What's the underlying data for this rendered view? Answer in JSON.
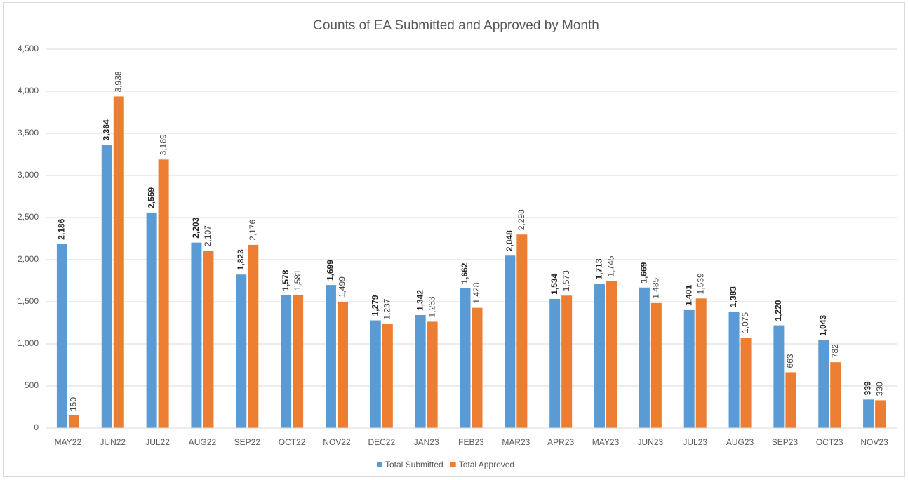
{
  "chart_data": {
    "type": "bar",
    "title": "Counts of EA Submitted and Approved by Month",
    "categories": [
      "MAY22",
      "JUN22",
      "JUL22",
      "AUG22",
      "SEP22",
      "OCT22",
      "NOV22",
      "DEC22",
      "JAN23",
      "FEB23",
      "MAR23",
      "APR23",
      "MAY23",
      "JUN23",
      "JUL23",
      "AUG23",
      "SEP23",
      "OCT23",
      "NOV23"
    ],
    "series": [
      {
        "name": "Total Submitted",
        "color": "#5b9bd5",
        "values": [
          2186,
          3364,
          2559,
          2203,
          1823,
          1578,
          1699,
          1279,
          1342,
          1662,
          2048,
          1534,
          1713,
          1669,
          1401,
          1383,
          1220,
          1043,
          339
        ],
        "value_labels": [
          "2,186",
          "3,364",
          "2,559",
          "2,203",
          "1,823",
          "1,578",
          "1,699",
          "1,279",
          "1,342",
          "1,662",
          "2,048",
          "1,534",
          "1,713",
          "1,669",
          "1,401",
          "1,383",
          "1,220",
          "1,043",
          "339"
        ]
      },
      {
        "name": "Total Approved",
        "color": "#ed7d31",
        "values": [
          150,
          3938,
          3189,
          2107,
          2176,
          1581,
          1499,
          1237,
          1263,
          1428,
          2298,
          1573,
          1745,
          1485,
          1539,
          1075,
          663,
          782,
          330
        ],
        "value_labels": [
          "150",
          "3,938",
          "3,189",
          "2,107",
          "2,176",
          "1,581",
          "1,499",
          "1,237",
          "1,263",
          "1,428",
          "2,298",
          "1,573",
          "1,745",
          "1,485",
          "1,539",
          "1,075",
          "663",
          "782",
          "330"
        ]
      }
    ],
    "ylim": [
      0,
      4500
    ],
    "yticks": [
      0,
      500,
      {
        "value": 1000,
        "label": "1,000"
      },
      {
        "value": 1500,
        "label": "1,500"
      },
      {
        "value": 2000,
        "label": "2,000"
      },
      {
        "value": 2500,
        "label": "2,500"
      },
      {
        "value": 3000,
        "label": "3,000"
      },
      {
        "value": 3500,
        "label": "3,500"
      },
      {
        "value": 4000,
        "label": "4,000"
      },
      {
        "value": 4500,
        "label": "4,500"
      }
    ],
    "grid": true,
    "legend": "bottom"
  }
}
